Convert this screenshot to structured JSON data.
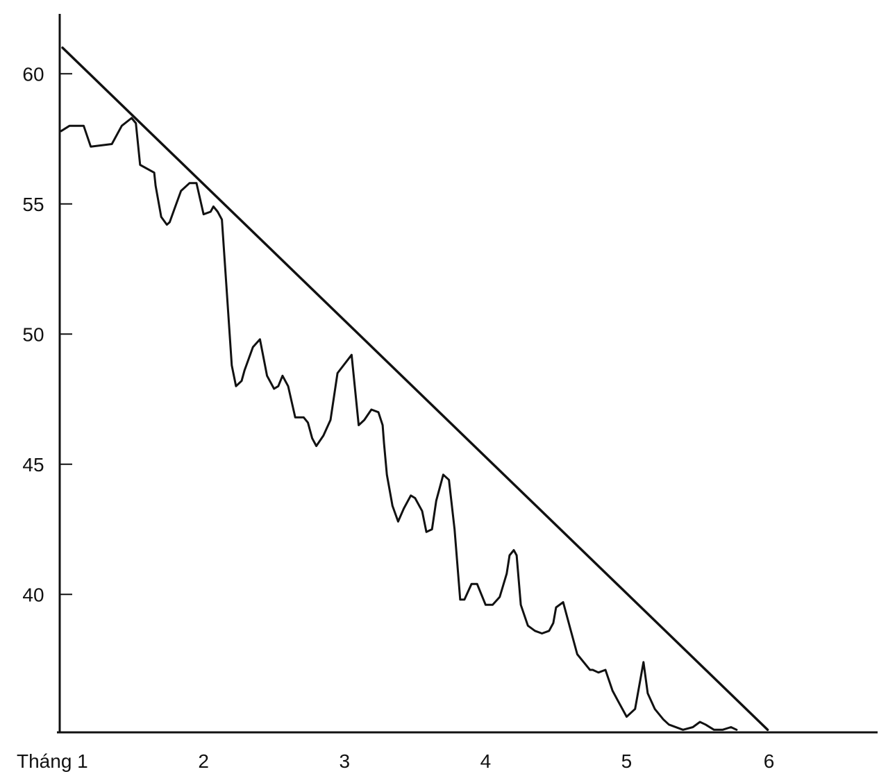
{
  "chart_data": {
    "type": "line",
    "title": "",
    "xlabel": "",
    "ylabel": "",
    "grid": false,
    "legend": "none",
    "x_ticks": [
      {
        "value": 1,
        "label": "Tháng 1"
      },
      {
        "value": 2,
        "label": "2"
      },
      {
        "value": 3,
        "label": "3"
      },
      {
        "value": 4,
        "label": "4"
      },
      {
        "value": 5,
        "label": "5"
      },
      {
        "value": 6,
        "label": "6"
      }
    ],
    "y_ticks": [
      {
        "value": 40,
        "label": "40"
      },
      {
        "value": 45,
        "label": "45"
      },
      {
        "value": 50,
        "label": "50"
      },
      {
        "value": 55,
        "label": "55"
      },
      {
        "value": 60,
        "label": "60"
      }
    ],
    "xlim": [
      0.98,
      6.78
    ],
    "ylim": [
      34.7,
      62.3
    ],
    "line_color": "#111111",
    "series": [
      {
        "x": [
          0.99,
          1.05,
          1.15,
          1.2,
          1.35,
          1.42,
          1.49,
          1.52,
          1.55,
          1.65,
          1.66,
          1.7,
          1.74,
          1.76,
          1.8,
          1.84,
          1.9,
          1.95,
          2.0,
          2.05,
          2.07,
          2.1,
          2.13,
          2.16,
          2.2,
          2.23,
          2.25,
          2.27,
          2.29,
          2.35,
          2.4,
          2.45,
          2.5,
          2.53,
          2.56,
          2.6,
          2.65,
          2.71,
          2.74,
          2.77,
          2.8,
          2.85,
          2.9,
          2.95,
          3.05,
          3.1,
          3.14,
          3.19,
          3.24,
          3.27,
          3.28,
          3.3,
          3.34,
          3.38,
          3.42,
          3.47,
          3.5,
          3.55,
          3.58,
          3.62,
          3.65,
          3.7,
          3.74,
          3.78,
          3.82,
          3.85,
          3.9,
          3.94,
          4.0,
          4.05,
          4.1,
          4.15,
          4.17,
          4.2,
          4.22,
          4.25,
          4.3,
          4.35,
          4.4,
          4.45,
          4.48,
          4.5,
          4.55,
          4.6,
          4.65,
          4.71,
          4.74,
          4.76,
          4.8,
          4.85,
          4.9,
          4.95,
          5.0,
          5.06,
          5.12,
          5.15,
          5.2,
          5.26,
          5.3,
          5.4,
          5.47,
          5.52,
          5.56,
          5.62,
          5.68,
          5.74,
          5.78
        ],
        "y": [
          57.8,
          58.0,
          58.0,
          57.2,
          57.3,
          58.0,
          58.3,
          58.1,
          56.5,
          56.2,
          55.7,
          54.5,
          54.2,
          54.3,
          54.9,
          55.5,
          55.8,
          55.8,
          54.6,
          54.7,
          54.9,
          54.7,
          54.4,
          52.0,
          48.8,
          48.0,
          48.1,
          48.2,
          48.6,
          49.5,
          49.8,
          48.4,
          47.9,
          48.0,
          48.4,
          48.0,
          46.8,
          46.8,
          46.6,
          46.0,
          45.7,
          46.1,
          46.7,
          48.5,
          49.2,
          46.5,
          46.7,
          47.1,
          47.0,
          46.5,
          45.8,
          44.6,
          43.4,
          42.8,
          43.3,
          43.8,
          43.7,
          43.2,
          42.4,
          42.5,
          43.6,
          44.6,
          44.4,
          42.5,
          39.8,
          39.8,
          40.4,
          40.4,
          39.6,
          39.6,
          39.9,
          40.8,
          41.5,
          41.7,
          41.5,
          39.6,
          38.8,
          38.6,
          38.5,
          38.6,
          38.9,
          39.5,
          39.7,
          38.7,
          37.7,
          37.3,
          37.1,
          37.1,
          37.0,
          37.1,
          36.3,
          35.8,
          35.3,
          35.6,
          37.4,
          36.2,
          35.6,
          35.2,
          35.0,
          34.8,
          34.9,
          35.1,
          35.0,
          34.8,
          34.8,
          34.9,
          34.8
        ]
      }
    ],
    "trendline": {
      "x": [
        1.0,
        6.0
      ],
      "y": [
        61.0,
        34.8
      ]
    }
  }
}
